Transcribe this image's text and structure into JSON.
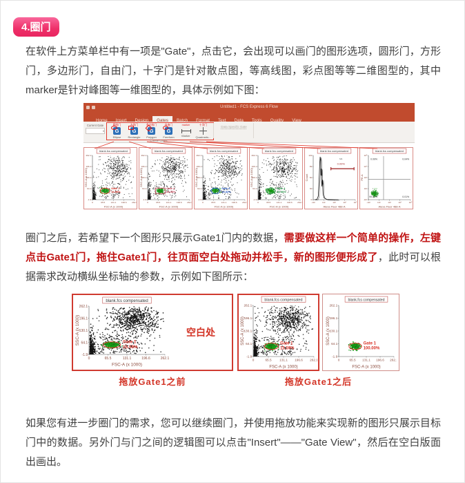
{
  "page": {
    "badge": "4.圈门",
    "para1": "在软件上方菜单栏中有一项是\"Gate\"，点击它，会出现可以画门的图形选项，圆形门，方形门，多边形门，自由门，十字门是针对散点图，等高线图，彩点图等等二维图型的，其中marker是针对峰图等一维图型的，具体示例如下图：",
    "para2_normal1": "圈门之后，若希望下一个图形只展示Gate1门内的数据，",
    "para2_red": "需要做这样一个简单的操作，左键点击Gate1门，拖住Gate1门，往页面空白处拖动并松手，新的图形便形成了",
    "para2_normal2": "，此时可以根据需求改动横纵坐标轴的参数，示例如下图所示：",
    "para3": "如果您有进一步圈门的需求，您可以继续圈门，并使用拖放功能来实现新的图形只展示目标门中的数据。另外门与门之间的逻辑图可以点击\"Insert\"——\"Gate View\"，然后在空白版面出画出。"
  },
  "figure1": {
    "app": {
      "title": "Untitled1 - FCS Express 6 Flow",
      "tabs": [
        "Home",
        "Insert",
        "Design",
        "Gates",
        "Batch",
        "Format",
        "Text",
        "Data",
        "Tools",
        "Quality",
        "View"
      ],
      "active_tab": "Gates",
      "current_gate_label": "Current Gate",
      "group_label": "Create Gates",
      "data_specific_gate": "Data Specific Gate",
      "tools": [
        {
          "label": "Ellipse",
          "annotation": "圆形门",
          "icon": "ellipse-gate-icon"
        },
        {
          "label": "Rectangle",
          "annotation": "方形门",
          "icon": "rectangle-gate-icon"
        },
        {
          "label": "Polygon",
          "annotation": "多边形门",
          "icon": "polygon-gate-icon"
        },
        {
          "label": "Freeform",
          "annotation": "自由门",
          "icon": "freeform-gate-icon"
        },
        {
          "label": "Marker",
          "annotation": "marker",
          "icon": "marker-gate-icon"
        },
        {
          "label": "Quadrants...",
          "annotation": "十字门",
          "icon": "quadrants-gate-icon"
        }
      ]
    },
    "plots": [
      {
        "type": "scatter",
        "title": "blank.fcs compensated",
        "xlabel": "FSC-A (x 1000)",
        "ylabel": "SSC-A (x 1000)",
        "xticks": [
          "0",
          "65.5",
          "131.1",
          "196.6",
          "262.1"
        ],
        "yticks": [
          "262.1",
          "196.1",
          "130.1",
          "64.1",
          "-1.9"
        ],
        "population": "full",
        "gate": {
          "shape": "ellipse",
          "name": "Gate 1",
          "pct": "15.59%",
          "color": "#d93025"
        }
      },
      {
        "type": "scatter",
        "title": "blank.fcs compensated",
        "xlabel": "FSC-A (x 1000)",
        "ylabel": "SSC-A (x 1000)",
        "xticks": [
          "0",
          "65.5",
          "131.1",
          "196.6",
          "262.1"
        ],
        "yticks": [
          "262.1",
          "196.1",
          "130.1",
          "64.1",
          "-1.9"
        ],
        "population": "full",
        "gate": {
          "shape": "rect",
          "name": "Gate 2",
          "pct": "15.55%",
          "color": "#c23b4f"
        }
      },
      {
        "type": "scatter",
        "title": "blank.fcs compensated",
        "xlabel": "FSC-A (x 1000)",
        "ylabel": "SSC-A (x 1000)",
        "xticks": [
          "0",
          "65.5",
          "131.1",
          "196.6",
          "262.1"
        ],
        "yticks": [
          "262.1",
          "196.1",
          "130.1",
          "64.1",
          "-1.9"
        ],
        "population": "full",
        "gate": {
          "shape": "polygon",
          "name": "Gate 3",
          "pct": "15.52%",
          "color": "#2457c5"
        }
      },
      {
        "type": "scatter",
        "title": "blank.fcs compensated",
        "xlabel": "FSC-A (x 1000)",
        "ylabel": "SSC-A (x 1000)",
        "xticks": [
          "0",
          "65.5",
          "131.1",
          "196.6",
          "262.1"
        ],
        "yticks": [
          "262.1",
          "196.1",
          "130.1",
          "64.1",
          "-1.9"
        ],
        "population": "full",
        "gate": {
          "shape": "freeform",
          "name": "Gate 4",
          "pct": "15.50%",
          "color": "#1d9140"
        }
      },
      {
        "type": "histogram",
        "title": "blank.fcs compensated",
        "xlabel": "Alexa Fluor 488-A",
        "ylabel": "Count",
        "xticks": [
          "-10²",
          "10²",
          "10³",
          "10⁴",
          "10⁵"
        ],
        "yticks": [
          "119",
          "89",
          "60",
          "30",
          "0"
        ],
        "marker": {
          "name": "M1",
          "pct": "0.09%",
          "color": "#a63232"
        }
      },
      {
        "type": "quadrant",
        "title": "blank.fcs compensated",
        "xlabel": "Alexa Fluor 488-A",
        "ylabel": "PE-A",
        "xticks": [
          "-10²",
          "10²",
          "10³",
          "10⁴",
          "10⁵"
        ],
        "yticks": [
          "10⁵",
          "10⁴",
          "10³",
          "10²",
          "-10²"
        ],
        "quadrants": {
          "top_left": "0.09%",
          "top_right": "0.04%",
          "bottom_left": "99.86%",
          "bottom_right": "0.01%"
        }
      }
    ]
  },
  "figure2": {
    "blank_label": "空白处",
    "caption_before": "拖放Gate1之前",
    "caption_after": "拖放Gate1之后",
    "plots": [
      {
        "type": "scatter",
        "title": "blank.fcs compensated",
        "xlabel": "FSC-A (x 1000)",
        "ylabel": "SSC-A (x 1000)",
        "xticks": [
          "0",
          "65.5",
          "131.1",
          "196.6",
          "262.1"
        ],
        "yticks": [
          "262.1",
          "196.1",
          "130.1",
          "64.1",
          "-1.9"
        ],
        "population": "full",
        "gate": {
          "shape": "ellipse",
          "name": "Gate 1",
          "pct": "15.59%",
          "color": "#d93025"
        }
      },
      {
        "type": "scatter",
        "title": "blank.fcs compensated",
        "xlabel": "FSC-A (x 1000)",
        "ylabel": "SSC-A (x 1000)",
        "xticks": [
          "0",
          "65.5",
          "131.1",
          "196.6",
          "262.1"
        ],
        "yticks": [
          "262.1",
          "196.1",
          "130.1",
          "64.1",
          "-1.9"
        ],
        "population": "full",
        "gate": {
          "shape": "ellipse",
          "name": "Gate 1",
          "pct": "15.59%",
          "color": "#d93025"
        }
      },
      {
        "type": "scatter",
        "title": "blank.fcs compensated",
        "xlabel": "FSC-A (x 1000)",
        "ylabel": "SSC-A (x 1000)",
        "xticks": [
          "0",
          "65.5",
          "131.1",
          "196.6",
          "262.1"
        ],
        "yticks": [
          "262.1",
          "196.1",
          "130.1",
          "64.1",
          "-1.9"
        ],
        "population": "gated",
        "gate": {
          "shape": "ellipse",
          "name": "Gate 1",
          "pct": "100.00%",
          "color": "#d93025"
        }
      }
    ]
  }
}
